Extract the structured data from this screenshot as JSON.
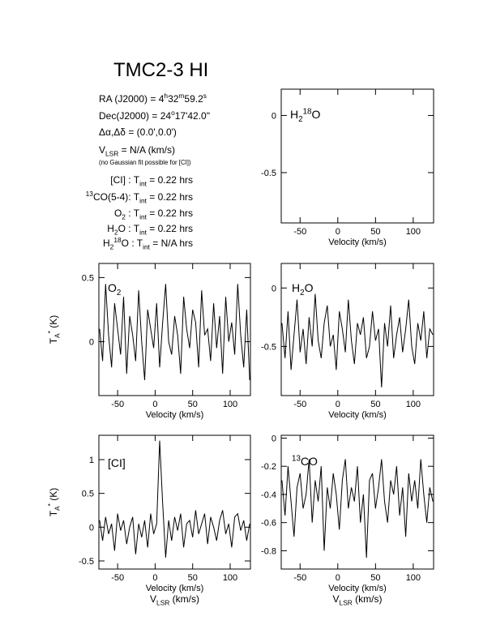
{
  "title": "TMC2-3 HI",
  "info": [
    [
      {
        "t": "RA (J2000) =  4"
      },
      {
        "t": "h",
        "pos": "sup"
      },
      {
        "t": "32"
      },
      {
        "t": "m",
        "pos": "sup"
      },
      {
        "t": "59.2"
      },
      {
        "t": "s",
        "pos": "sup"
      }
    ],
    [
      {
        "t": "Dec(J2000) =  24"
      },
      {
        "t": "o",
        "pos": "sup"
      },
      {
        "t": "17'42.0\""
      }
    ],
    [
      {
        "t": "Δα,Δδ = (0.0',0.0')"
      }
    ],
    [
      {
        "t": "V"
      },
      {
        "t": "LSR",
        "pos": "sub"
      },
      {
        "t": "  = N/A  (km/s)"
      }
    ],
    [
      {
        "t": "(no Gaussian fit possible for [CI])",
        "pos": "small"
      }
    ],
    [
      {
        "t": "[CI] : T"
      },
      {
        "t": "int",
        "pos": "sub"
      },
      {
        "t": " = 0.22 hrs"
      }
    ],
    [
      {
        "t": "13",
        "pos": "sup"
      },
      {
        "t": "CO(5-4): T"
      },
      {
        "t": "int",
        "pos": "sub"
      },
      {
        "t": " = 0.22 hrs"
      }
    ],
    [
      {
        "t": "O"
      },
      {
        "t": "2",
        "pos": "sub"
      },
      {
        "t": " : T"
      },
      {
        "t": "int",
        "pos": "sub"
      },
      {
        "t": " = 0.22 hrs"
      }
    ],
    [
      {
        "t": "H"
      },
      {
        "t": "2",
        "pos": "sub"
      },
      {
        "t": "O : T"
      },
      {
        "t": "int",
        "pos": "sub"
      },
      {
        "t": " = 0.22 hrs"
      }
    ],
    [
      {
        "t": "H"
      },
      {
        "t": "2",
        "pos": "sub"
      },
      {
        "t": "18",
        "pos": "sup"
      },
      {
        "t": "O : T"
      },
      {
        "t": "int",
        "pos": "sub"
      },
      {
        "t": " = N/A hrs"
      }
    ]
  ],
  "chart_data": [
    {
      "type": "line",
      "label": [
        {
          "t": "H"
        },
        {
          "t": "2",
          "pos": "sub"
        },
        {
          "t": "18",
          "pos": "sup"
        },
        {
          "t": "O"
        }
      ],
      "xlabel": [
        {
          "t": "Velocity (km/s)"
        }
      ],
      "xlim": [
        -75,
        127
      ],
      "ylim": [
        -0.94,
        0.23
      ],
      "xticks": [
        -50,
        0,
        50,
        100
      ],
      "yticks": [
        0,
        -0.5
      ],
      "color": "#000000"
    },
    {
      "type": "line",
      "label": [
        {
          "t": "O"
        },
        {
          "t": "2",
          "pos": "sub"
        }
      ],
      "xlabel": [
        {
          "t": "Velocity (km/s)"
        }
      ],
      "ylabel": [
        {
          "t": "T"
        },
        {
          "t": "A",
          "pos": "sub"
        },
        {
          "t": "*",
          "pos": "sup"
        },
        {
          "t": " (K)"
        }
      ],
      "xlim": [
        -75,
        127
      ],
      "ylim": [
        -0.42,
        0.61
      ],
      "xticks": [
        -50,
        0,
        50,
        100
      ],
      "yticks": [
        0.5,
        0
      ],
      "color": "#000000",
      "x": [
        -74,
        -70,
        -66,
        -62,
        -58,
        -54,
        -50,
        -46,
        -42,
        -38,
        -34,
        -30,
        -26,
        -22,
        -18,
        -14,
        -10,
        -6,
        -2,
        2,
        6,
        10,
        14,
        18,
        22,
        26,
        30,
        34,
        38,
        42,
        46,
        50,
        54,
        58,
        62,
        66,
        70,
        74,
        78,
        82,
        86,
        90,
        94,
        98,
        102,
        106,
        110,
        114,
        118,
        122,
        126
      ],
      "values": [
        0.1,
        -0.15,
        0.45,
        0.05,
        -0.2,
        0.3,
        0.1,
        -0.1,
        0.35,
        -0.25,
        0.2,
        0.05,
        -0.15,
        0.4,
        0.0,
        -0.3,
        0.25,
        0.1,
        -0.05,
        0.3,
        -0.2,
        0.15,
        0.45,
        0.0,
        -0.1,
        0.2,
        0.05,
        -0.25,
        0.35,
        0.1,
        -0.05,
        0.25,
        0.15,
        -0.2,
        0.4,
        0.05,
        0.1,
        -0.15,
        0.3,
        -0.05,
        0.2,
        -0.25,
        0.35,
        0.0,
        0.15,
        -0.1,
        0.45,
        0.05,
        -0.2,
        0.25,
        -0.3
      ]
    },
    {
      "type": "line",
      "label": [
        {
          "t": "H"
        },
        {
          "t": "2",
          "pos": "sub"
        },
        {
          "t": "O"
        }
      ],
      "xlabel": [
        {
          "t": "Velocity (km/s)"
        }
      ],
      "xlim": [
        -75,
        127
      ],
      "ylim": [
        -0.92,
        0.21
      ],
      "xticks": [
        -50,
        0,
        50,
        100
      ],
      "yticks": [
        0,
        -0.5
      ],
      "color": "#000000",
      "x": [
        -74,
        -70,
        -66,
        -62,
        -58,
        -54,
        -50,
        -46,
        -42,
        -38,
        -34,
        -30,
        -26,
        -22,
        -18,
        -14,
        -10,
        -6,
        -2,
        2,
        6,
        10,
        14,
        18,
        22,
        26,
        30,
        34,
        38,
        42,
        46,
        50,
        54,
        58,
        62,
        66,
        70,
        74,
        78,
        82,
        86,
        90,
        94,
        98,
        102,
        106,
        110,
        114,
        118,
        122,
        126
      ],
      "values": [
        -0.3,
        -0.6,
        -0.2,
        -0.7,
        -0.4,
        -0.1,
        -0.55,
        -0.35,
        -0.65,
        -0.25,
        -0.5,
        -0.05,
        -0.45,
        -0.6,
        -0.3,
        -0.15,
        -0.5,
        -0.4,
        -0.7,
        -0.2,
        -0.35,
        -0.55,
        -0.1,
        -0.45,
        -0.65,
        -0.3,
        -0.4,
        -0.25,
        -0.6,
        -0.5,
        -0.2,
        -0.45,
        -0.35,
        -0.85,
        -0.3,
        -0.5,
        -0.15,
        -0.6,
        -0.4,
        -0.25,
        -0.55,
        -0.35,
        -0.1,
        -0.5,
        -0.65,
        -0.3,
        -0.45,
        -0.2,
        -0.6,
        -0.35,
        -0.4
      ]
    },
    {
      "type": "line",
      "label": [
        {
          "t": "[CI]"
        }
      ],
      "xlabel": [
        {
          "t": "Velocity (km/s)"
        }
      ],
      "xlabel2": [
        {
          "t": "V"
        },
        {
          "t": "LSR",
          "pos": "sub"
        },
        {
          "t": " (km/s)"
        }
      ],
      "ylabel": [
        {
          "t": "T"
        },
        {
          "t": "A",
          "pos": "sub"
        },
        {
          "t": "*",
          "pos": "sup"
        },
        {
          "t": " (K)"
        }
      ],
      "xlim": [
        -75,
        127
      ],
      "ylim": [
        -0.62,
        1.36
      ],
      "xticks": [
        -50,
        0,
        50,
        100
      ],
      "yticks": [
        1,
        0.5,
        0,
        -0.5
      ],
      "color": "#000000",
      "x": [
        -74,
        -70,
        -66,
        -62,
        -58,
        -54,
        -50,
        -46,
        -42,
        -38,
        -34,
        -30,
        -26,
        -22,
        -18,
        -14,
        -10,
        -6,
        -2,
        2,
        6,
        10,
        14,
        18,
        22,
        26,
        30,
        34,
        38,
        42,
        46,
        50,
        54,
        58,
        62,
        66,
        70,
        74,
        78,
        82,
        86,
        90,
        94,
        98,
        102,
        106,
        110,
        114,
        118,
        122,
        126
      ],
      "values": [
        0.1,
        -0.2,
        0.15,
        -0.1,
        0.05,
        -0.35,
        0.2,
        -0.05,
        0.1,
        -0.25,
        0.0,
        0.15,
        -0.4,
        0.05,
        -0.15,
        0.1,
        -0.3,
        0.2,
        -0.1,
        0.05,
        1.28,
        0.35,
        -0.45,
        0.1,
        -0.2,
        0.15,
        -0.05,
        0.2,
        -0.3,
        0.05,
        0.1,
        -0.15,
        0.25,
        -0.1,
        0.05,
        0.2,
        -0.25,
        0.15,
        0.0,
        -0.2,
        0.1,
        0.25,
        -0.1,
        0.05,
        -0.3,
        0.15,
        0.2,
        -0.05,
        0.1,
        -0.2,
        0.05
      ]
    },
    {
      "type": "line",
      "label": [
        {
          "t": "13",
          "pos": "sup"
        },
        {
          "t": "CO"
        }
      ],
      "xlabel": [
        {
          "t": "Velocity (km/s)"
        }
      ],
      "xlabel2": [
        {
          "t": "V"
        },
        {
          "t": "LSR",
          "pos": "sub"
        },
        {
          "t": " (km/s)"
        }
      ],
      "xlim": [
        -75,
        127
      ],
      "ylim": [
        -0.93,
        0.02
      ],
      "xticks": [
        -50,
        0,
        50,
        100
      ],
      "yticks": [
        0,
        -0.2,
        -0.4,
        -0.6,
        -0.8
      ],
      "color": "#000000",
      "x": [
        -74,
        -70,
        -66,
        -62,
        -58,
        -54,
        -50,
        -46,
        -42,
        -38,
        -34,
        -30,
        -26,
        -22,
        -18,
        -14,
        -10,
        -6,
        -2,
        2,
        6,
        10,
        14,
        18,
        22,
        26,
        30,
        34,
        38,
        42,
        46,
        50,
        54,
        58,
        62,
        66,
        70,
        74,
        78,
        82,
        86,
        90,
        94,
        98,
        102,
        106,
        110,
        114,
        118,
        122,
        126
      ],
      "values": [
        -0.3,
        -0.55,
        -0.2,
        -0.45,
        -0.7,
        -0.35,
        -0.25,
        -0.5,
        -0.4,
        -0.15,
        -0.6,
        -0.3,
        -0.45,
        -0.2,
        -0.8,
        -0.35,
        -0.5,
        -0.25,
        -0.4,
        -0.65,
        -0.3,
        -0.15,
        -0.5,
        -0.35,
        -0.45,
        -0.2,
        -0.6,
        -0.4,
        -0.85,
        -0.3,
        -0.25,
        -0.5,
        -0.35,
        -0.15,
        -0.45,
        -0.6,
        -0.3,
        -0.4,
        -0.2,
        -0.55,
        -0.35,
        -0.7,
        -0.25,
        -0.45,
        -0.3,
        -0.5,
        -0.15,
        -0.4,
        -0.6,
        -0.35,
        -0.45
      ]
    }
  ]
}
